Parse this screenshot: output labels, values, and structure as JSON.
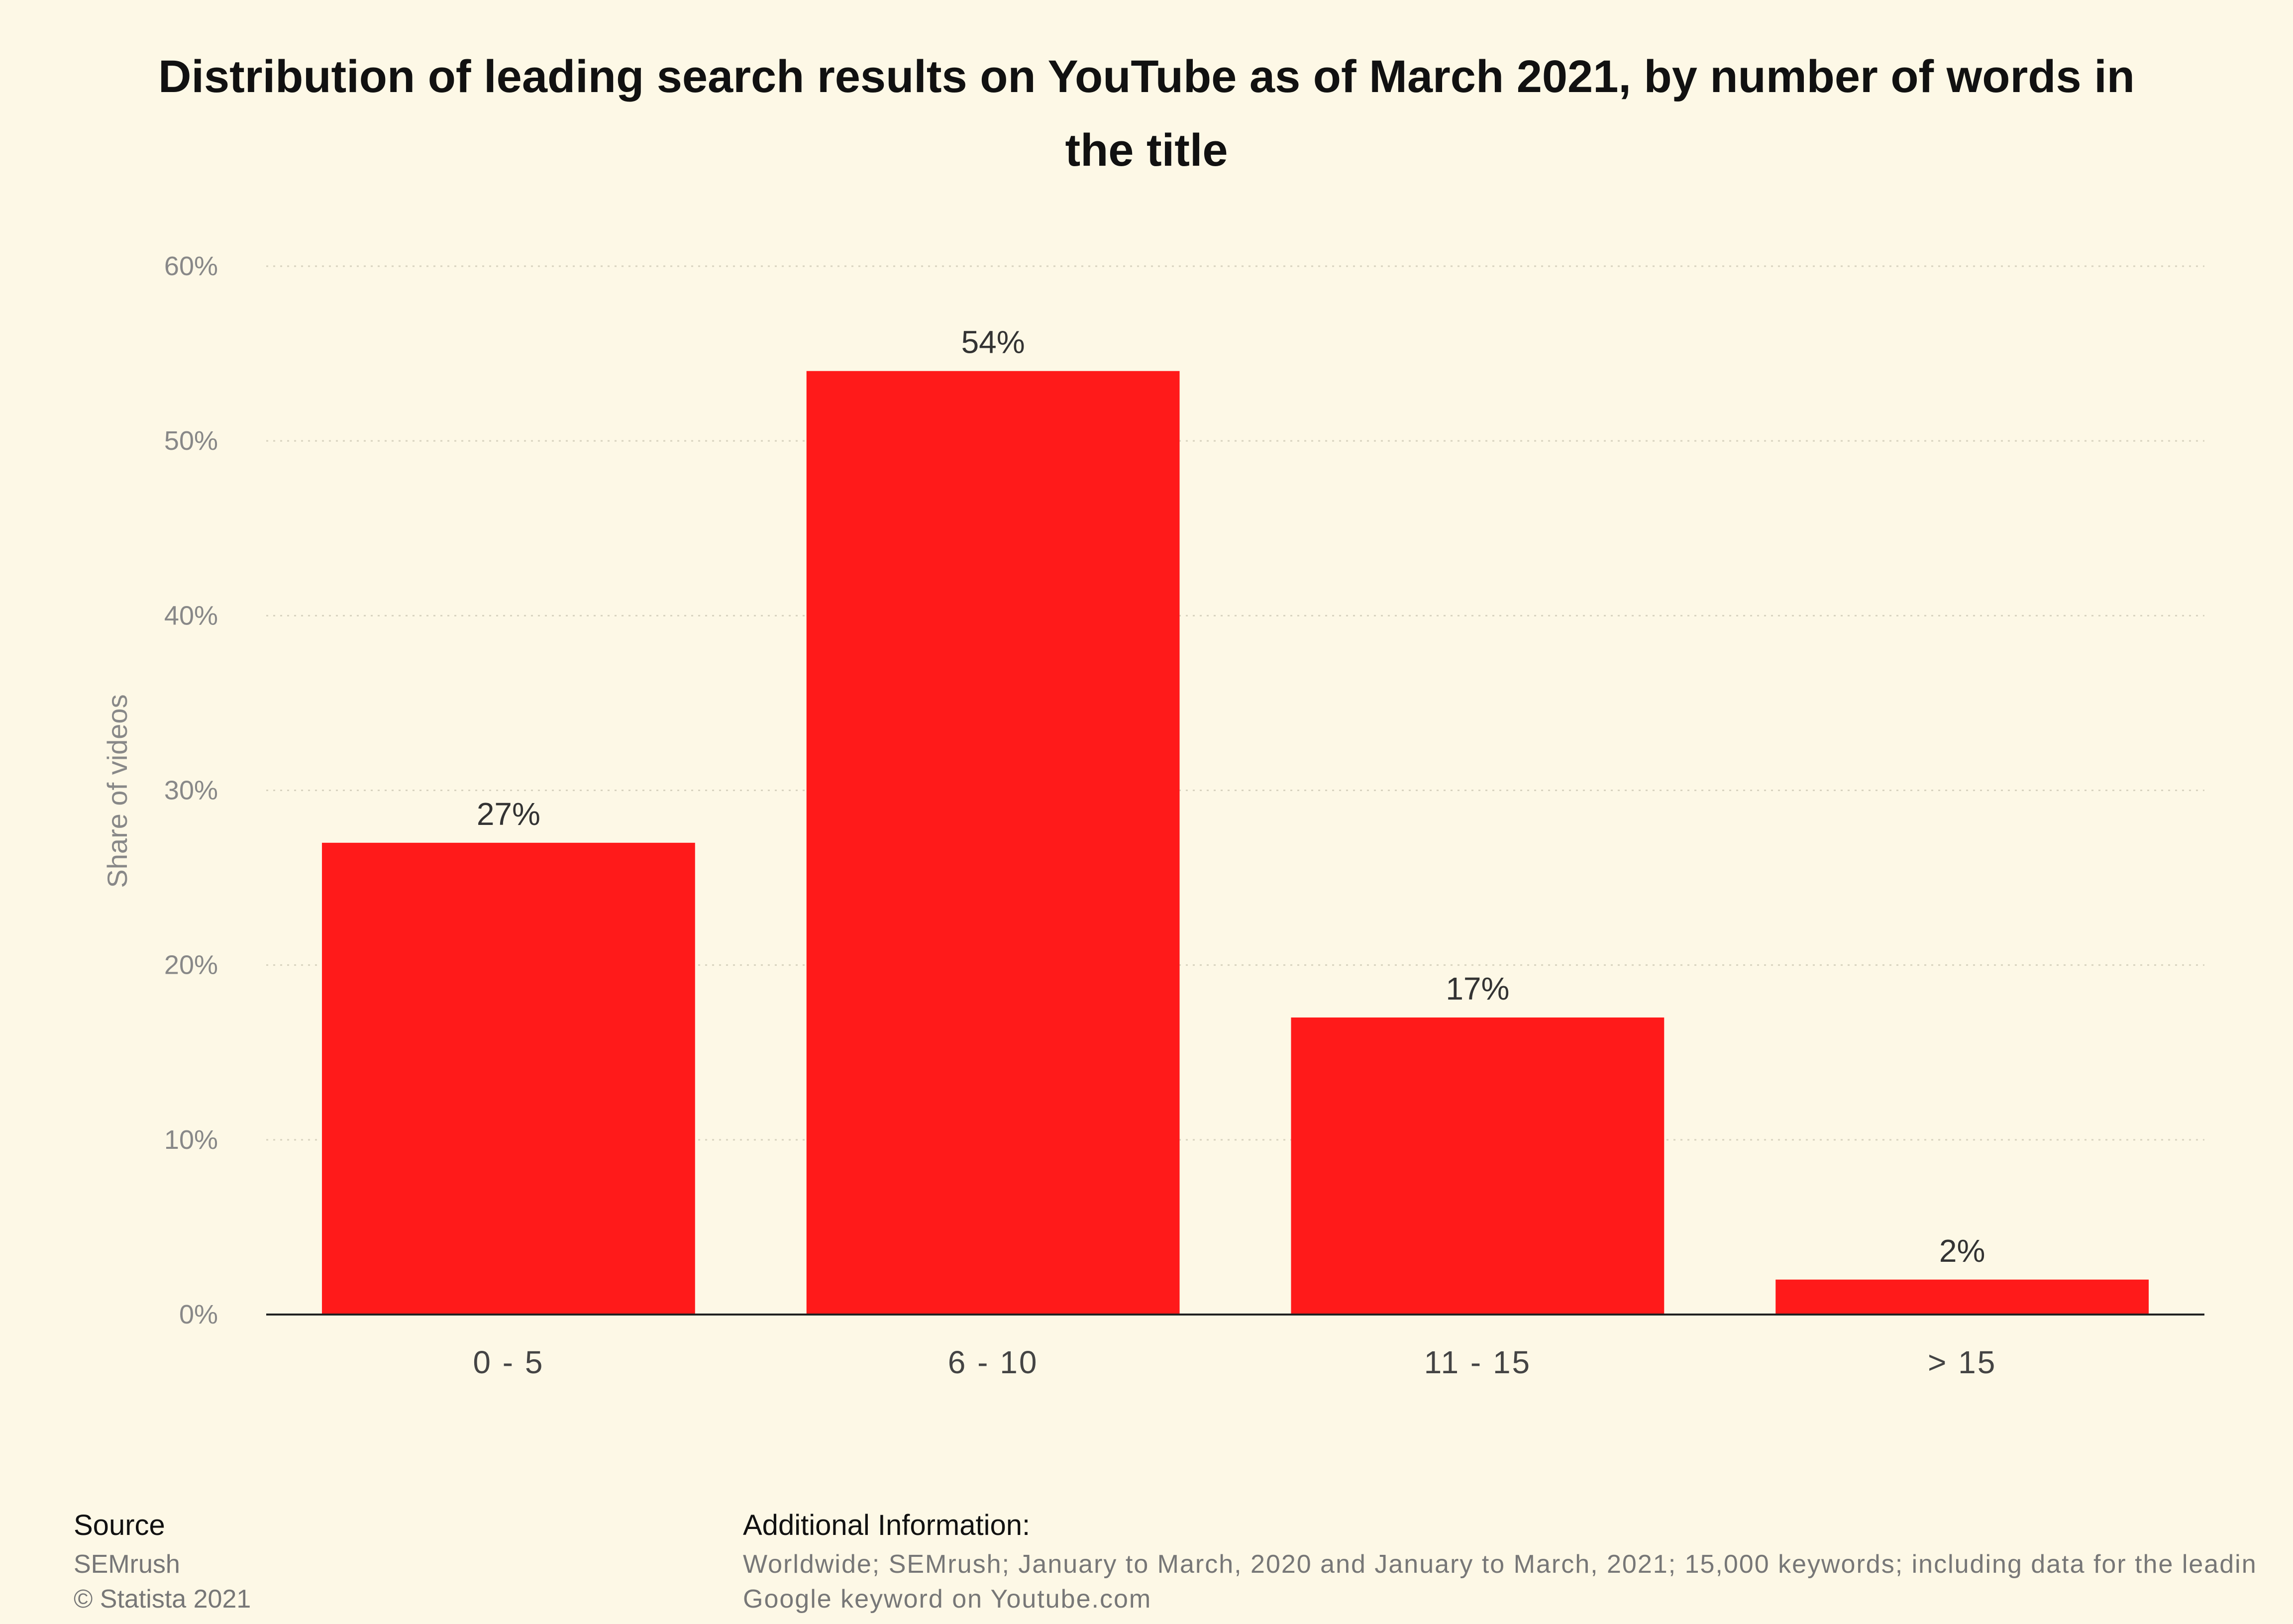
{
  "chart_data": {
    "type": "bar",
    "title": "Distribution of leading search results on YouTube as of March 2021, by number of words in the title",
    "xlabel": "",
    "ylabel": "Share of videos",
    "categories": [
      "0 - 5",
      "6 - 10",
      "11 - 15",
      "> 15"
    ],
    "values": [
      27,
      54,
      17,
      2
    ],
    "value_labels": [
      "27%",
      "54%",
      "17%",
      "2%"
    ],
    "ylim": [
      0,
      60
    ],
    "yticks": [
      0,
      10,
      20,
      30,
      40,
      50,
      60
    ],
    "ytick_labels": [
      "0%",
      "10%",
      "20%",
      "30%",
      "40%",
      "50%",
      "60%"
    ],
    "grid": true,
    "legend": "none",
    "bar_color": "#ff1a1a"
  },
  "footer": {
    "source_label": "Source",
    "source_lines": [
      "SEMrush",
      "© Statista 2021"
    ],
    "info_label": "Additional Information:",
    "info_lines": [
      "Worldwide; SEMrush; January to March, 2020 and January to March, 2021; 15,000 keywords; including data for the leadin",
      "Google keyword on Youtube.com"
    ]
  }
}
